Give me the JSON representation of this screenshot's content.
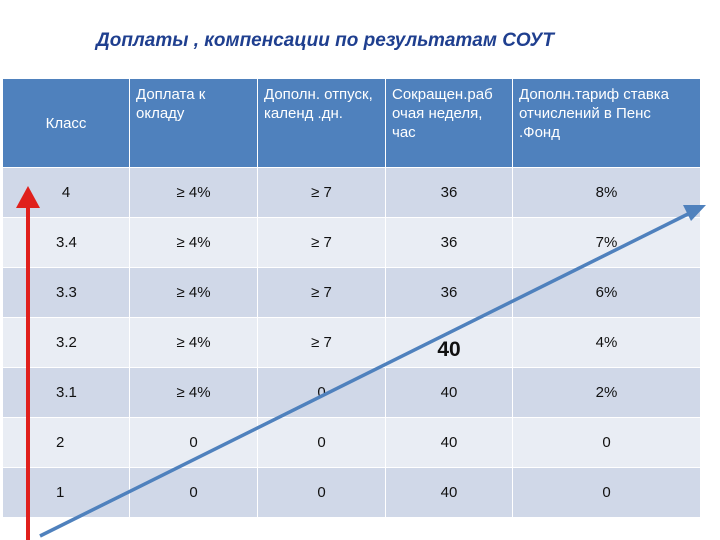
{
  "title": "Доплаты , компенсации по результатам СОУТ",
  "table": {
    "headers": [
      "Класс",
      "Доплата к окладу",
      "Дополн. отпуск, календ .дн.",
      "Сокращен.раб очая неделя, час",
      "Дополн.тариф ставка отчислений в Пенс .Фонд"
    ],
    "rows": [
      [
        "4",
        "≥ 4%",
        "≥ 7",
        "36",
        "8%"
      ],
      [
        "3.4",
        "≥ 4%",
        "≥ 7",
        "36",
        "7%"
      ],
      [
        "3.3",
        "≥ 4%",
        "≥ 7",
        "36",
        "6%"
      ],
      [
        "3.2",
        "≥ 4%",
        "≥ 7",
        "40",
        "4%"
      ],
      [
        "3.1",
        "≥ 4%",
        "0",
        "40",
        "2%"
      ],
      [
        "2",
        "0",
        "0",
        "40",
        "0"
      ],
      [
        "1",
        "0",
        "0",
        "40",
        "0"
      ]
    ]
  },
  "colors": {
    "header_bg": "#4f81bd",
    "row_odd": "#d0d8e8",
    "row_even": "#e9edf4",
    "title_color": "#1f3f8f",
    "vertical_arrow": "#e0201c",
    "diagonal_arrow": "#4f81bd"
  },
  "icons": {
    "vertical_arrow": "red-up-arrow",
    "diagonal_arrow": "blue-diagonal-arrow"
  }
}
